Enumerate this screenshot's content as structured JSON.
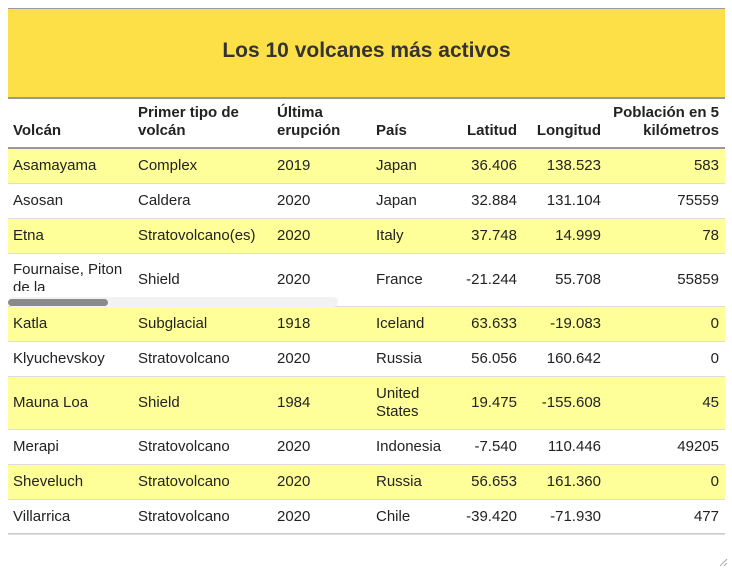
{
  "title": "Los 10 volcanes más activos",
  "headers": [
    "Volcán",
    "Primer tipo de volcán",
    "Última erupción",
    "País",
    "Latitud",
    "Longitud",
    "Población en 5 kilómetros"
  ],
  "rows": [
    {
      "volcan": "Asamayama",
      "tipo": "Complex",
      "erupcion": "2019",
      "pais": "Japan",
      "lat": "36.406",
      "lon": "138.523",
      "pob": "583"
    },
    {
      "volcan": "Asosan",
      "tipo": "Caldera",
      "erupcion": "2020",
      "pais": "Japan",
      "lat": "32.884",
      "lon": "131.104",
      "pob": "75559"
    },
    {
      "volcan": "Etna",
      "tipo": "Stratovolcano(es)",
      "erupcion": "2020",
      "pais": "Italy",
      "lat": "37.748",
      "lon": "14.999",
      "pob": "78"
    },
    {
      "volcan": "Fournaise, Piton de la",
      "tipo": "Shield",
      "erupcion": "2020",
      "pais": "France",
      "lat": "-21.244",
      "lon": "55.708",
      "pob": "55859"
    },
    {
      "volcan": "Katla",
      "tipo": "Subglacial",
      "erupcion": "1918",
      "pais": "Iceland",
      "lat": "63.633",
      "lon": "-19.083",
      "pob": "0"
    },
    {
      "volcan": "Klyuchevskoy",
      "tipo": "Stratovolcano",
      "erupcion": "2020",
      "pais": "Russia",
      "lat": "56.056",
      "lon": "160.642",
      "pob": "0"
    },
    {
      "volcan": "Mauna Loa",
      "tipo": "Shield",
      "erupcion": "1984",
      "pais": "United States",
      "lat": "19.475",
      "lon": "-155.608",
      "pob": "45"
    },
    {
      "volcan": "Merapi",
      "tipo": "Stratovolcano",
      "erupcion": "2020",
      "pais": "Indonesia",
      "lat": "-7.540",
      "lon": "110.446",
      "pob": "49205"
    },
    {
      "volcan": "Sheveluch",
      "tipo": "Stratovolcano",
      "erupcion": "2020",
      "pais": "Russia",
      "lat": "56.653",
      "lon": "161.360",
      "pob": "0"
    },
    {
      "volcan": "Villarrica",
      "tipo": "Stratovolcano",
      "erupcion": "2020",
      "pais": "Chile",
      "lat": "-39.420",
      "lon": "-71.930",
      "pob": "477"
    }
  ],
  "colors": {
    "title_bg": "#fde047",
    "row_highlight": "#ffff99"
  },
  "icons": {
    "resize": "resize-grip-icon"
  }
}
